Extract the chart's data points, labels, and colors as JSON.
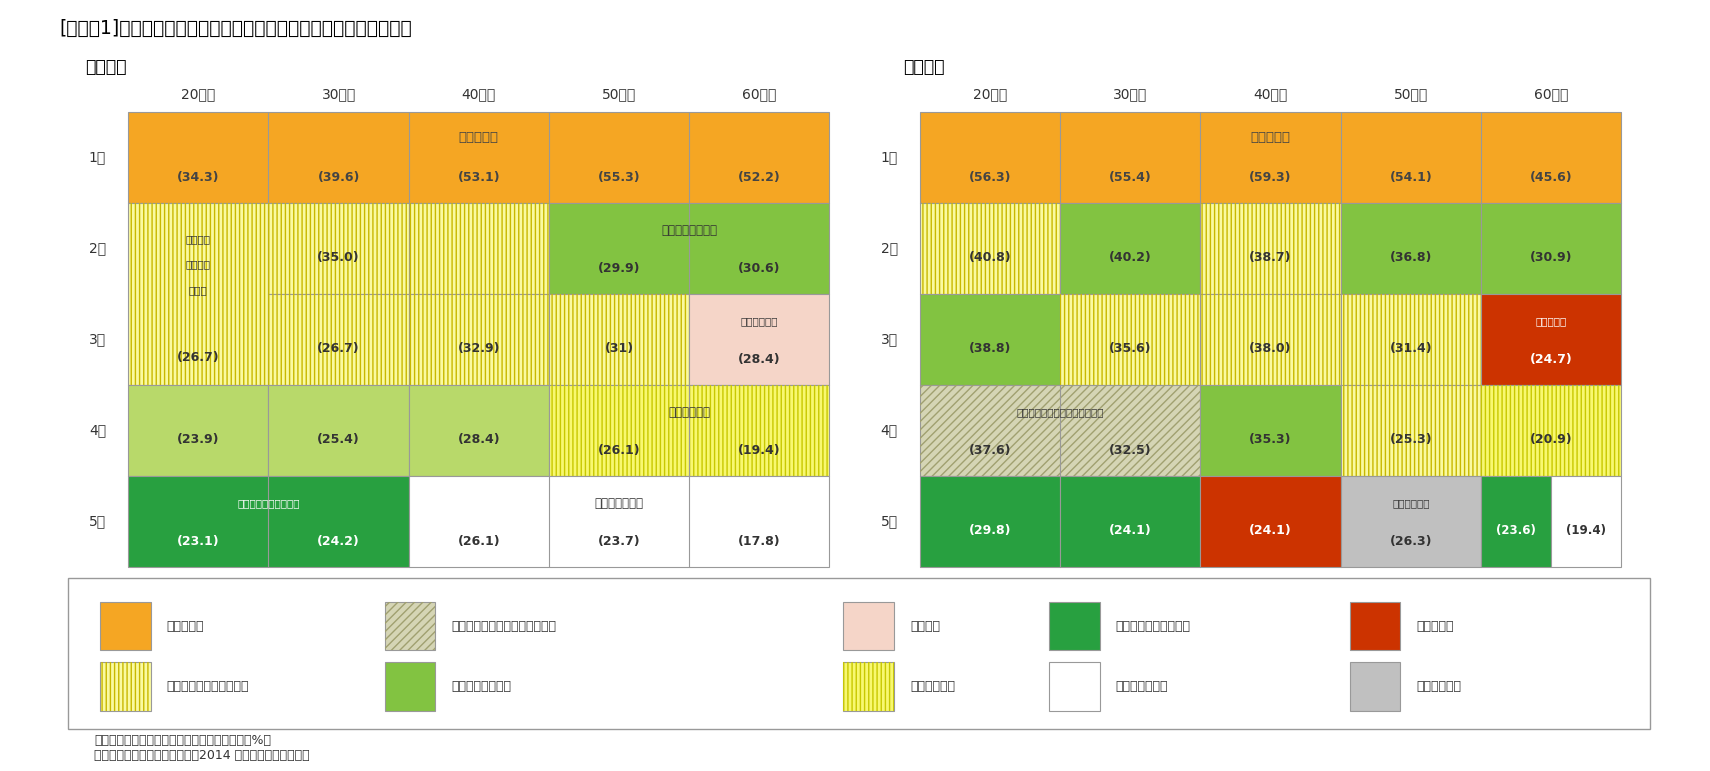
{
  "title": "[図表－1]　日ごろの体調や生活習慣に関して課題と感じていること",
  "male_label": "【男性】",
  "female_label": "【女性】",
  "age_groups": [
    "20歳代",
    "30歳代",
    "40歳代",
    "50歳代",
    "60歳代"
  ],
  "ranks": [
    "1位",
    "2位",
    "3位",
    "4位",
    "5位"
  ],
  "note1": "（注）（）内の数字は課題と感じている割合（%）",
  "note2": "（資料）ニッセイ基礎研究所「2014 年健康に関する調査」",
  "ORANGE": "#F5A623",
  "YELLOW_H": "#FAFAA0",
  "YELLOW_H2": "#C8B800",
  "GREEN": "#82C341",
  "GREEN2": "#B8D96A",
  "GRAY_H": "#D5D5B5",
  "GRAY_H2": "#A0A070",
  "PINK": "#F5D5C8",
  "YELL2": "#F8F870",
  "YELL2_H": "#C8C800",
  "DKGRN": "#28A040",
  "WHITE": "#FFFFFF",
  "RED": "#CC3300",
  "LTGRAY": "#C0C0C0",
  "EDGE": "#999999"
}
